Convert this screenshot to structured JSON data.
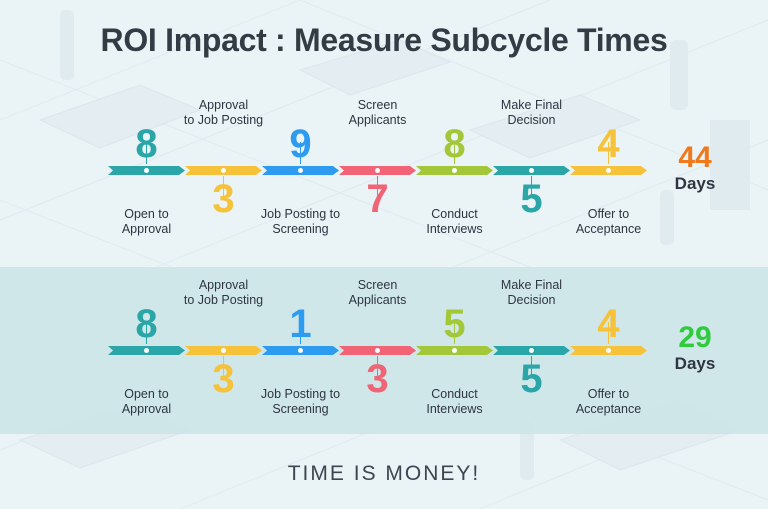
{
  "title": "ROI Impact : Measure Subcycle Times",
  "tagline": "TIME IS MONEY!",
  "colors": {
    "teal": "#2aa6a8",
    "yellow": "#f6c23a",
    "blue": "#2d9cf0",
    "pink": "#f06476",
    "green": "#a2c83a",
    "orange": "#f0791c",
    "total_green": "#2ecc3c"
  },
  "stages": [
    {
      "label": "Open to Approval",
      "color": "teal"
    },
    {
      "label": "Approval to Job Posting",
      "color": "yellow"
    },
    {
      "label": "Job Posting to Screening",
      "color": "blue"
    },
    {
      "label": "Screen Applicants",
      "color": "pink"
    },
    {
      "label": "Conduct Interviews",
      "color": "green"
    },
    {
      "label": "Make Final Decision",
      "color": "teal"
    },
    {
      "label": "Offer to Acceptance",
      "color": "yellow"
    }
  ],
  "timelines": [
    {
      "values": [
        "8",
        "3",
        "9",
        "7",
        "8",
        "5",
        "4"
      ],
      "total": "44",
      "unit": "Days",
      "total_color": "orange"
    },
    {
      "values": [
        "8",
        "3",
        "1",
        "3",
        "5",
        "5",
        "4"
      ],
      "total": "29",
      "unit": "Days",
      "total_color": "total_green"
    }
  ],
  "illustration": {
    "background": "isometric-office-scene",
    "elements": [
      "desk-icon",
      "computer-monitor-icon",
      "office-chair-icon",
      "person-figure-icon",
      "filing-cabinet-icon"
    ]
  }
}
